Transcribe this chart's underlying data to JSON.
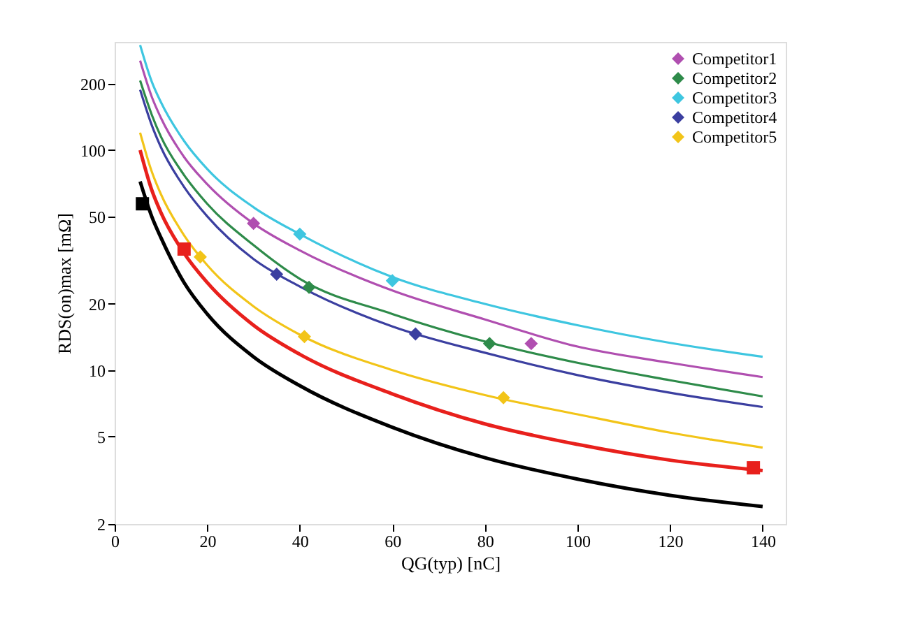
{
  "chart_data": {
    "type": "line",
    "xlabel": "QG(typ) [nC]",
    "ylabel": "RDS(on)max [mΩ]",
    "xlim": [
      0,
      145
    ],
    "xticks": [
      0,
      20,
      40,
      60,
      80,
      100,
      120,
      140
    ],
    "ylim": [
      2,
      310
    ],
    "yticks": [
      2,
      5,
      10,
      20,
      50,
      100,
      200
    ],
    "log": "y",
    "grid": false,
    "legend": "top right",
    "series": [
      {
        "color": "#b04fb0",
        "x": [
          5.5,
          8,
          10,
          15,
          20,
          30,
          40,
          60,
          80,
          100,
          120,
          140
        ],
        "values": [
          255,
          175,
          140,
          93,
          70,
          46.4,
          35,
          23,
          17,
          12.8,
          10.8,
          9.3
        ]
      },
      {
        "color": "#2e8b4a",
        "x": [
          5.5,
          8,
          10,
          15,
          20,
          30,
          40,
          60,
          80,
          100,
          120,
          140
        ],
        "values": [
          207,
          145,
          115,
          77,
          57,
          37,
          26,
          18,
          13.5,
          10.8,
          9,
          7.6
        ]
      },
      {
        "color": "#3ec6e0",
        "x": [
          5.5,
          8,
          10,
          15,
          20,
          30,
          40,
          60,
          80,
          100,
          120,
          140
        ],
        "values": [
          300,
          205,
          165,
          110,
          82,
          55,
          41.5,
          26.5,
          20,
          16,
          13.3,
          11.5
        ]
      },
      {
        "color": "#3b3fa0",
        "x": [
          5.5,
          8,
          10,
          15,
          20,
          30,
          40,
          60,
          80,
          100,
          120,
          140
        ],
        "values": [
          188,
          130,
          103,
          68,
          50,
          32,
          24,
          15.8,
          12,
          9.5,
          7.9,
          6.8
        ]
      },
      {
        "color": "#f2c418",
        "x": [
          5.5,
          8,
          10,
          15,
          20,
          30,
          40,
          60,
          80,
          100,
          120,
          140
        ],
        "values": [
          120,
          80,
          63,
          41,
          30,
          19.5,
          14.5,
          10,
          7.7,
          6.3,
          5.2,
          4.45
        ]
      },
      {
        "color": "#e8201c",
        "x": [
          5.5,
          8,
          10,
          15,
          20,
          30,
          40,
          60,
          80,
          100,
          120,
          140
        ],
        "values": [
          100,
          66,
          52,
          34,
          25,
          16,
          11.8,
          7.8,
          5.7,
          4.6,
          3.9,
          3.5
        ]
      },
      {
        "color": "#000000",
        "x": [
          5.5,
          8,
          10,
          15,
          20,
          30,
          40,
          60,
          80,
          100,
          120,
          140
        ],
        "values": [
          72,
          50,
          40,
          25,
          18,
          11.5,
          8.5,
          5.5,
          4,
          3.2,
          2.7,
          2.4
        ]
      },
      {
        "type": "scatter",
        "name": "Competitor1",
        "marker": "diamond",
        "color": "#b04fb0",
        "x": [
          30,
          90
        ],
        "values": [
          46.4,
          13.2
        ]
      },
      {
        "type": "scatter",
        "name": "Competitor2",
        "marker": "diamond",
        "color": "#2e8b4a",
        "x": [
          42,
          81
        ],
        "values": [
          23.8,
          13.2
        ]
      },
      {
        "type": "scatter",
        "name": "Competitor3",
        "marker": "diamond",
        "color": "#3ec6e0",
        "x": [
          40,
          60
        ],
        "values": [
          41.5,
          25.5
        ]
      },
      {
        "type": "scatter",
        "name": "Competitor4",
        "marker": "diamond",
        "color": "#3b3fa0",
        "x": [
          35,
          65
        ],
        "values": [
          27.3,
          14.6
        ]
      },
      {
        "type": "scatter",
        "name": "Competitor5",
        "marker": "diamond",
        "color": "#f2c418",
        "x": [
          18.5,
          41,
          84
        ],
        "values": [
          32.7,
          14.2,
          7.5
        ]
      },
      {
        "type": "scatter",
        "marker": "square",
        "color": "#e8201c",
        "x": [
          15,
          138
        ],
        "values": [
          35.5,
          3.6
        ]
      },
      {
        "type": "scatter",
        "marker": "square",
        "color": "#000000",
        "x": [
          6
        ],
        "values": [
          57
        ]
      }
    ]
  }
}
